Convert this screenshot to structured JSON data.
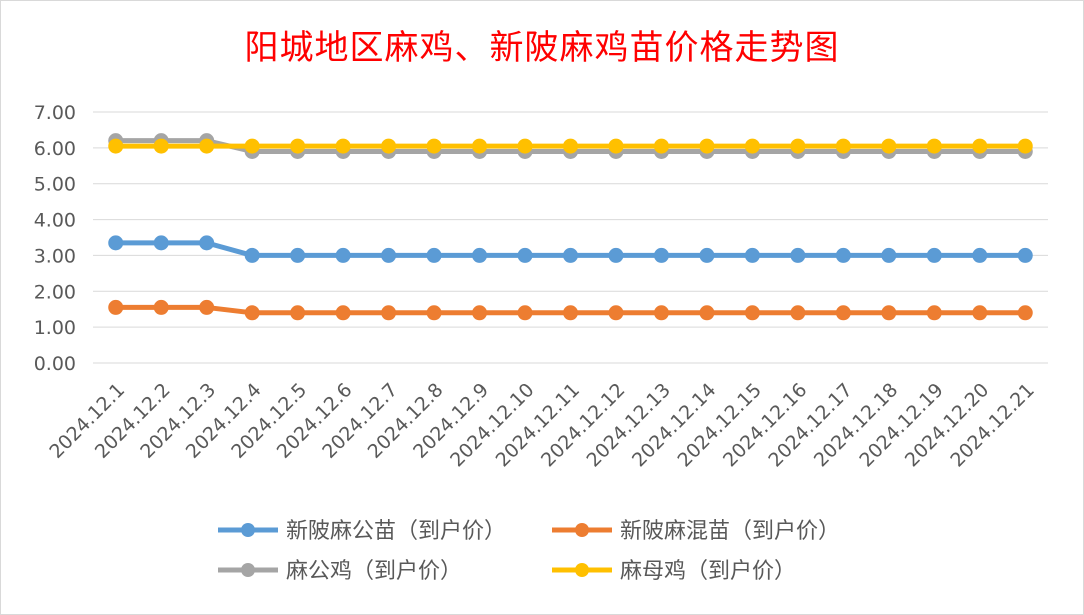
{
  "chart_data": {
    "type": "line",
    "title": "阳城地区麻鸡、新陂麻鸡苗价格走势图",
    "x": [
      "2024.12.1",
      "2024.12.2",
      "2024.12.3",
      "2024.12.4",
      "2024.12.5",
      "2024.12.6",
      "2024.12.7",
      "2024.12.8",
      "2024.12.9",
      "2024.12.10",
      "2024.12.11",
      "2024.12.12",
      "2024.12.13",
      "2024.12.14",
      "2024.12.15",
      "2024.12.16",
      "2024.12.17",
      "2024.12.18",
      "2024.12.19",
      "2024.12.20",
      "2024.12.21"
    ],
    "y_ticks": [
      "0.00",
      "1.00",
      "2.00",
      "3.00",
      "4.00",
      "5.00",
      "6.00",
      "7.00"
    ],
    "ylim": [
      0,
      7
    ],
    "grid": "horizontal",
    "legend_position": "bottom",
    "series": [
      {
        "name": "新陂麻公苗（到户价）",
        "color": "#5b9bd5",
        "values": [
          3.35,
          3.35,
          3.35,
          3.0,
          3.0,
          3.0,
          3.0,
          3.0,
          3.0,
          3.0,
          3.0,
          3.0,
          3.0,
          3.0,
          3.0,
          3.0,
          3.0,
          3.0,
          3.0,
          3.0,
          3.0
        ]
      },
      {
        "name": "新陂麻混苗（到户价）",
        "color": "#ed7d31",
        "values": [
          1.55,
          1.55,
          1.55,
          1.4,
          1.4,
          1.4,
          1.4,
          1.4,
          1.4,
          1.4,
          1.4,
          1.4,
          1.4,
          1.4,
          1.4,
          1.4,
          1.4,
          1.4,
          1.4,
          1.4,
          1.4
        ]
      },
      {
        "name": "麻公鸡（到户价）",
        "color": "#a5a5a5",
        "values": [
          6.2,
          6.2,
          6.2,
          5.9,
          5.9,
          5.9,
          5.9,
          5.9,
          5.9,
          5.9,
          5.9,
          5.9,
          5.9,
          5.9,
          5.9,
          5.9,
          5.9,
          5.9,
          5.9,
          5.9,
          5.9
        ]
      },
      {
        "name": "麻母鸡（到户价）",
        "color": "#ffc000",
        "values": [
          6.05,
          6.05,
          6.05,
          6.05,
          6.05,
          6.05,
          6.05,
          6.05,
          6.05,
          6.05,
          6.05,
          6.05,
          6.05,
          6.05,
          6.05,
          6.05,
          6.05,
          6.05,
          6.05,
          6.05,
          6.05
        ]
      }
    ]
  }
}
